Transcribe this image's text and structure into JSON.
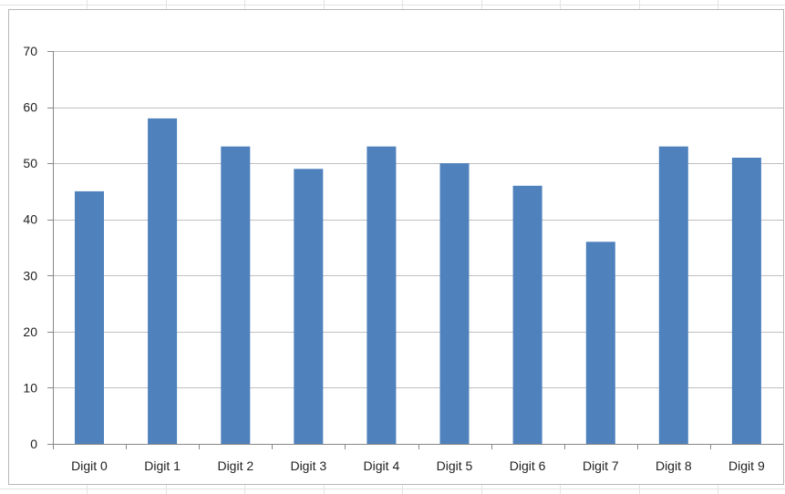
{
  "chart_data": {
    "type": "bar",
    "title": "",
    "xlabel": "",
    "ylabel": "",
    "categories": [
      "Digit 0",
      "Digit 1",
      "Digit 2",
      "Digit 3",
      "Digit 4",
      "Digit 5",
      "Digit 6",
      "Digit 7",
      "Digit 8",
      "Digit 9"
    ],
    "values": [
      45,
      58,
      53,
      49,
      53,
      50,
      46,
      36,
      53,
      51
    ],
    "ylim": [
      0,
      70
    ],
    "yticks": [
      0,
      10,
      20,
      30,
      40,
      50,
      60,
      70
    ],
    "ytick_labels": [
      "0",
      "10",
      "20",
      "30",
      "40",
      "50",
      "60",
      "70"
    ],
    "grid": true,
    "legend": "none",
    "bar_color": "#4f81bd",
    "grid_color": "#bfbfbf",
    "axis_color": "#878787"
  }
}
